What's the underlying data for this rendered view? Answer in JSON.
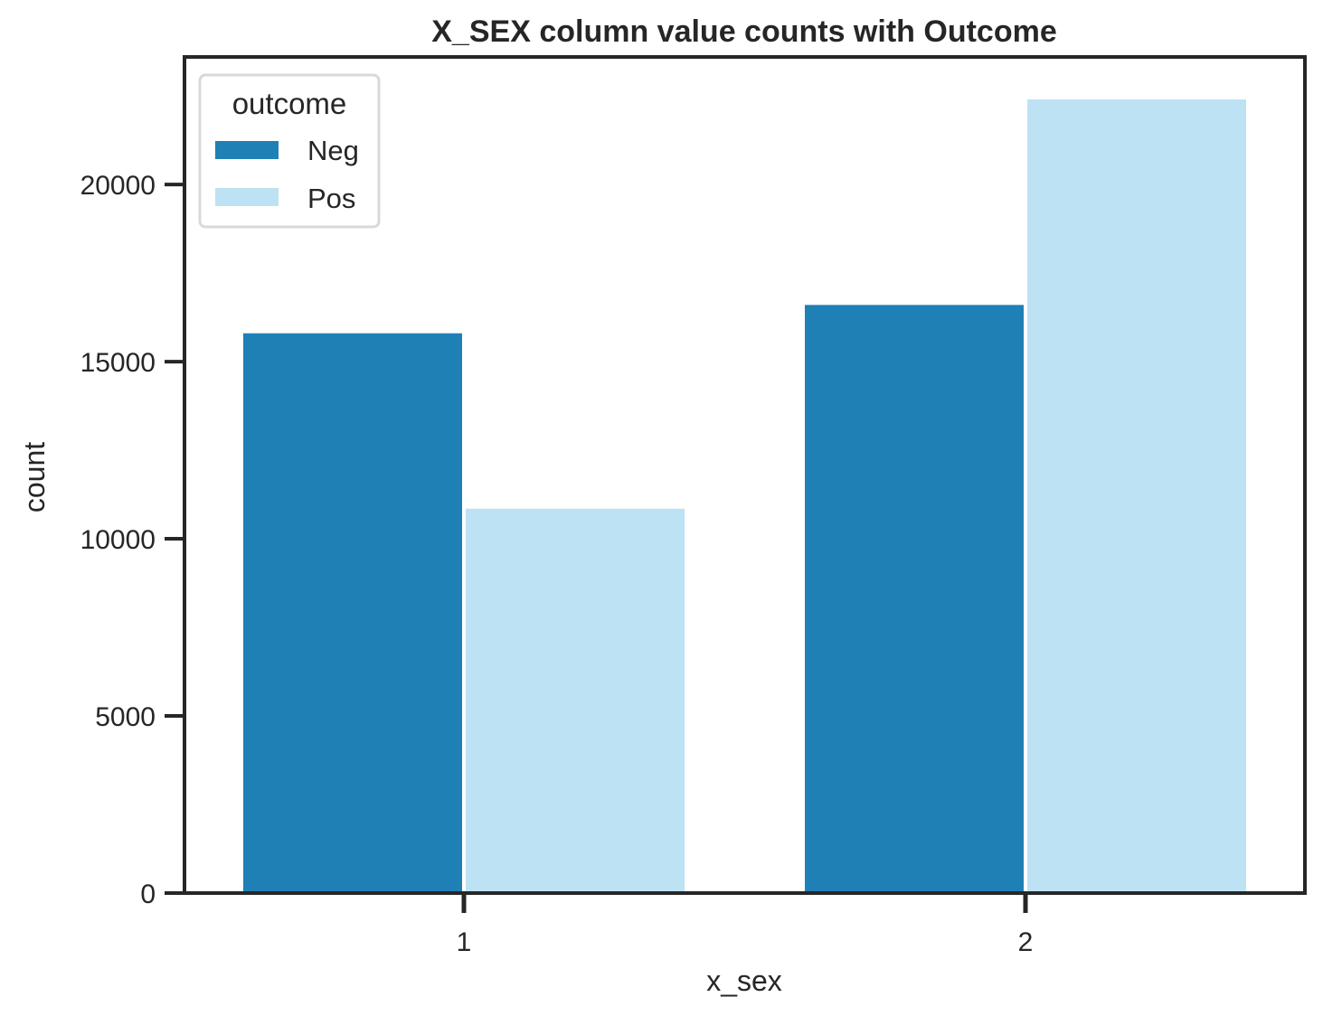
{
  "colors": {
    "neg": "#1f80b6",
    "pos": "#bde2f3",
    "axis": "#262626",
    "legend_border": "#d9d9d9"
  },
  "chart_data": {
    "type": "bar",
    "title": "X_SEX column value counts with Outcome",
    "xlabel": "x_sex",
    "ylabel": "count",
    "categories": [
      "1",
      "2"
    ],
    "series": [
      {
        "name": "Neg",
        "values": [
          15800,
          16600
        ]
      },
      {
        "name": "Pos",
        "values": [
          10850,
          22400
        ]
      }
    ],
    "ylim": [
      0,
      23600
    ],
    "yticks": [
      0,
      5000,
      10000,
      15000,
      20000
    ],
    "legend": {
      "title": "outcome",
      "position": "top-left"
    },
    "grid": false
  }
}
